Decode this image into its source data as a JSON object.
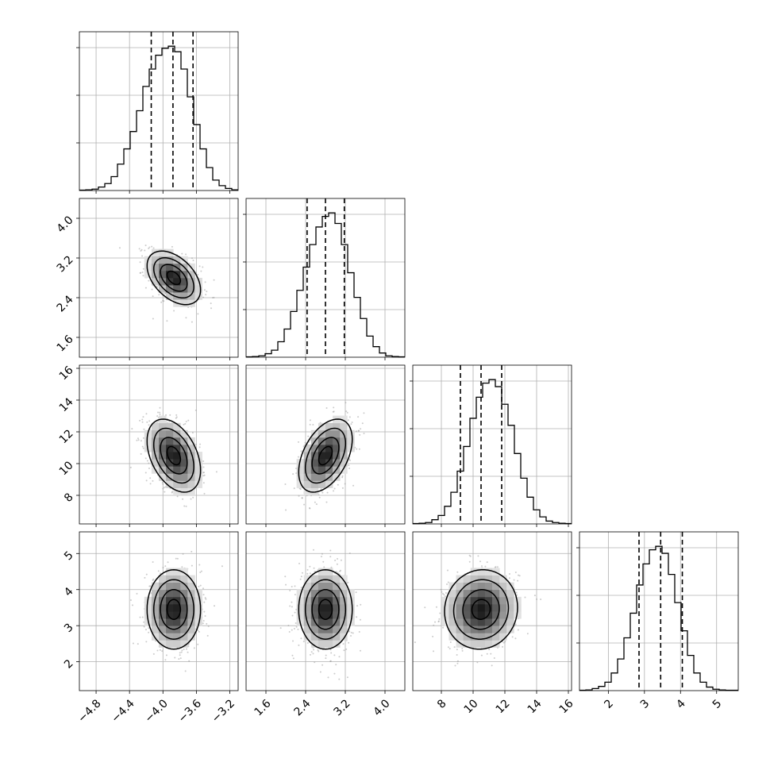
{
  "chart_data": {
    "type": "corner",
    "params": [
      {
        "hist_range": [
          -5.0,
          -3.1
        ],
        "hist": [
          0.5,
          1,
          2,
          5,
          10,
          20,
          38,
          60,
          85,
          115,
          150,
          175,
          195,
          205,
          208,
          200,
          175,
          135,
          95,
          60,
          33,
          15,
          7,
          3,
          1
        ],
        "quantiles": [
          -4.14,
          -3.88,
          -3.64
        ],
        "axis_range": [
          -5.0,
          -3.1
        ],
        "ticks": [
          -4.8,
          -4.4,
          -4.0,
          -3.6,
          -3.2
        ],
        "tick_labels": [
          "−4.8",
          "−4.4",
          "−4.0",
          "−3.6",
          "−3.2"
        ]
      },
      {
        "hist_range": [
          1.2,
          4.4
        ],
        "hist": [
          0.5,
          1,
          2,
          5,
          10,
          22,
          40,
          65,
          95,
          128,
          160,
          185,
          200,
          205,
          190,
          160,
          120,
          85,
          55,
          30,
          15,
          6,
          2,
          1,
          0.5
        ],
        "quantiles": [
          2.43,
          2.8,
          3.18
        ],
        "axis_range": [
          1.2,
          4.4
        ],
        "ticks": [
          1.6,
          2.4,
          3.2,
          4.0
        ],
        "tick_labels": [
          "1.6",
          "2.4",
          "3.2",
          "4.0"
        ]
      },
      {
        "hist_range": [
          6.2,
          16.2
        ],
        "hist": [
          0.5,
          1,
          2,
          6,
          12,
          25,
          45,
          75,
          110,
          150,
          180,
          200,
          205,
          195,
          170,
          140,
          100,
          65,
          38,
          20,
          10,
          4,
          2,
          1,
          0.5
        ],
        "quantiles": [
          9.2,
          10.5,
          11.8
        ],
        "axis_range": [
          6.2,
          16.2
        ],
        "ticks": [
          8,
          10,
          12,
          14,
          16
        ],
        "tick_labels": [
          "8",
          "10",
          "12",
          "14",
          "16"
        ]
      },
      {
        "hist_range": [
          1.2,
          5.6
        ],
        "hist": [
          0.5,
          1,
          3,
          6,
          12,
          25,
          45,
          75,
          110,
          150,
          180,
          200,
          205,
          195,
          165,
          125,
          85,
          50,
          25,
          12,
          5,
          2,
          1,
          0.5,
          0.5
        ],
        "quantiles": [
          2.85,
          3.45,
          4.05
        ],
        "axis_range": [
          1.2,
          5.6
        ],
        "ticks": [
          2,
          3,
          4,
          5
        ],
        "tick_labels": [
          "2",
          "3",
          "4",
          "5"
        ]
      }
    ],
    "y_axis_ticks": {
      "1": {
        "ticks": [
          1.6,
          2.4,
          3.2,
          4.0
        ],
        "tick_labels": [
          "1.6",
          "2.4",
          "3.2",
          "4.0"
        ]
      },
      "2": {
        "ticks": [
          8,
          10,
          12,
          14,
          16
        ],
        "tick_labels": [
          "8",
          "10",
          "12",
          "14",
          "16"
        ]
      },
      "3": {
        "ticks": [
          2,
          3,
          4,
          5
        ],
        "tick_labels": [
          "2",
          "3",
          "4",
          "5"
        ]
      }
    },
    "pairs": [
      {
        "x": 0,
        "y": 1,
        "center": [
          -3.87,
          2.8
        ],
        "sigma": [
          0.16,
          0.27
        ],
        "corr": -0.45
      },
      {
        "x": 0,
        "y": 2,
        "center": [
          -3.87,
          10.5
        ],
        "sigma": [
          0.16,
          1.15
        ],
        "corr": -0.4
      },
      {
        "x": 1,
        "y": 2,
        "center": [
          2.8,
          10.5
        ],
        "sigma": [
          0.27,
          1.15
        ],
        "corr": 0.45
      },
      {
        "x": 0,
        "y": 3,
        "center": [
          -3.87,
          3.45
        ],
        "sigma": [
          0.16,
          0.55
        ],
        "corr": 0.0
      },
      {
        "x": 1,
        "y": 3,
        "center": [
          2.8,
          3.45
        ],
        "sigma": [
          0.27,
          0.55
        ],
        "corr": 0.0
      },
      {
        "x": 2,
        "y": 3,
        "center": [
          10.5,
          3.45
        ],
        "sigma": [
          1.15,
          0.55
        ],
        "corr": 0.05
      }
    ],
    "contour_levels_sigma": [
      0.5,
      1.0,
      1.5,
      2.0
    ],
    "grid": true,
    "colors": {
      "line": "#000000",
      "grid": "#b0b0b0",
      "points": "#9a9a9a"
    }
  }
}
